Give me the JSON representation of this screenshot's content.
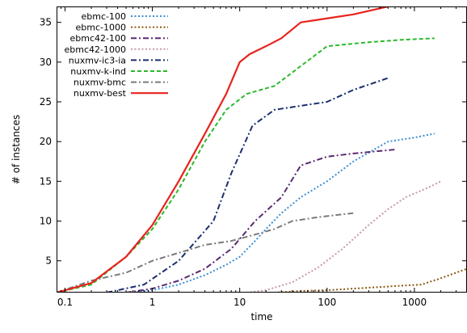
{
  "chart_data": {
    "type": "line",
    "title": "",
    "xlabel": "time",
    "ylabel": "# of instances",
    "xscale": "log",
    "xlim": [
      0.08,
      4000
    ],
    "ylim": [
      1,
      37
    ],
    "x_ticks": [
      0.1,
      1,
      10,
      100,
      1000
    ],
    "x_tick_labels": [
      "0.1",
      "1",
      "10",
      "100",
      "1000"
    ],
    "y_ticks": [
      5,
      10,
      15,
      20,
      25,
      30,
      35
    ],
    "y_tick_labels": [
      "5",
      "10",
      "15",
      "20",
      "25",
      "30",
      "35"
    ],
    "grid": false,
    "legend_position": "top-left",
    "series": [
      {
        "name": "ebmc-100",
        "color": "#3a8fd6",
        "dash": "dotted",
        "points": [
          [
            0.6,
            1
          ],
          [
            1,
            1.3
          ],
          [
            2,
            2
          ],
          [
            4,
            3.2
          ],
          [
            7,
            4.5
          ],
          [
            10,
            5.5
          ],
          [
            15,
            7.5
          ],
          [
            20,
            9
          ],
          [
            30,
            11
          ],
          [
            50,
            13
          ],
          [
            100,
            15
          ],
          [
            200,
            17.5
          ],
          [
            500,
            20
          ],
          [
            1000,
            20.5
          ],
          [
            1700,
            21
          ]
        ]
      },
      {
        "name": "ebmc-1000",
        "color": "#8a5a10",
        "dash": "dotted",
        "points": [
          [
            25,
            1
          ],
          [
            50,
            1.2
          ],
          [
            100,
            1.3
          ],
          [
            200,
            1.5
          ],
          [
            400,
            1.7
          ],
          [
            800,
            1.9
          ],
          [
            1200,
            2
          ],
          [
            2000,
            2.8
          ],
          [
            3000,
            3.5
          ],
          [
            4000,
            4
          ]
        ]
      },
      {
        "name": "ebmc42-100",
        "color": "#5a2a70",
        "dash": "dashdot",
        "points": [
          [
            0.5,
            1
          ],
          [
            1,
            1.5
          ],
          [
            2,
            2.5
          ],
          [
            4,
            4
          ],
          [
            8,
            6.5
          ],
          [
            15,
            10
          ],
          [
            30,
            13
          ],
          [
            50,
            17
          ],
          [
            100,
            18.1
          ],
          [
            200,
            18.5
          ],
          [
            600,
            19
          ]
        ]
      },
      {
        "name": "ebmc42-1000",
        "color": "#c898a8",
        "dash": "dotted",
        "points": [
          [
            12,
            1
          ],
          [
            20,
            1.3
          ],
          [
            40,
            2.3
          ],
          [
            80,
            4.2
          ],
          [
            150,
            6.5
          ],
          [
            300,
            9.5
          ],
          [
            500,
            11.5
          ],
          [
            800,
            13
          ],
          [
            1500,
            14.3
          ],
          [
            2000,
            15
          ]
        ]
      },
      {
        "name": "nuxmv-ic3-ia",
        "color": "#1c2e6e",
        "dash": "dashdot",
        "points": [
          [
            0.3,
            1
          ],
          [
            0.8,
            2
          ],
          [
            2,
            5
          ],
          [
            5,
            10
          ],
          [
            8,
            16
          ],
          [
            14,
            22
          ],
          [
            25,
            24
          ],
          [
            50,
            24.5
          ],
          [
            100,
            25
          ],
          [
            200,
            26.5
          ],
          [
            500,
            28
          ]
        ]
      },
      {
        "name": "nuxmv-k-ind",
        "color": "#2db82d",
        "dash": "dashed",
        "points": [
          [
            0.08,
            1
          ],
          [
            0.2,
            2
          ],
          [
            0.5,
            5.5
          ],
          [
            1,
            9
          ],
          [
            2,
            14
          ],
          [
            4,
            20
          ],
          [
            7,
            24
          ],
          [
            12,
            26
          ],
          [
            25,
            27
          ],
          [
            50,
            29.5
          ],
          [
            100,
            32
          ],
          [
            300,
            32.5
          ],
          [
            700,
            32.8
          ],
          [
            1700,
            33
          ]
        ]
      },
      {
        "name": "nuxmv-bmc",
        "color": "#7a7a7a",
        "dash": "dashdot",
        "points": [
          [
            0.08,
            1
          ],
          [
            0.2,
            2.5
          ],
          [
            0.5,
            3.5
          ],
          [
            1,
            5
          ],
          [
            2,
            6
          ],
          [
            4,
            7
          ],
          [
            8,
            7.5
          ],
          [
            15,
            8.3
          ],
          [
            25,
            9
          ],
          [
            40,
            10
          ],
          [
            80,
            10.5
          ],
          [
            200,
            11
          ]
        ]
      },
      {
        "name": "nuxmv-best",
        "color": "#e8231c",
        "dash": "solid",
        "points": [
          [
            0.08,
            1
          ],
          [
            0.2,
            2.2
          ],
          [
            0.5,
            5.5
          ],
          [
            1,
            9.5
          ],
          [
            2,
            15
          ],
          [
            4,
            21
          ],
          [
            7,
            26
          ],
          [
            10,
            30
          ],
          [
            13,
            31
          ],
          [
            20,
            32
          ],
          [
            30,
            33
          ],
          [
            50,
            35
          ],
          [
            100,
            35.5
          ],
          [
            200,
            36
          ],
          [
            500,
            37
          ]
        ]
      }
    ]
  }
}
